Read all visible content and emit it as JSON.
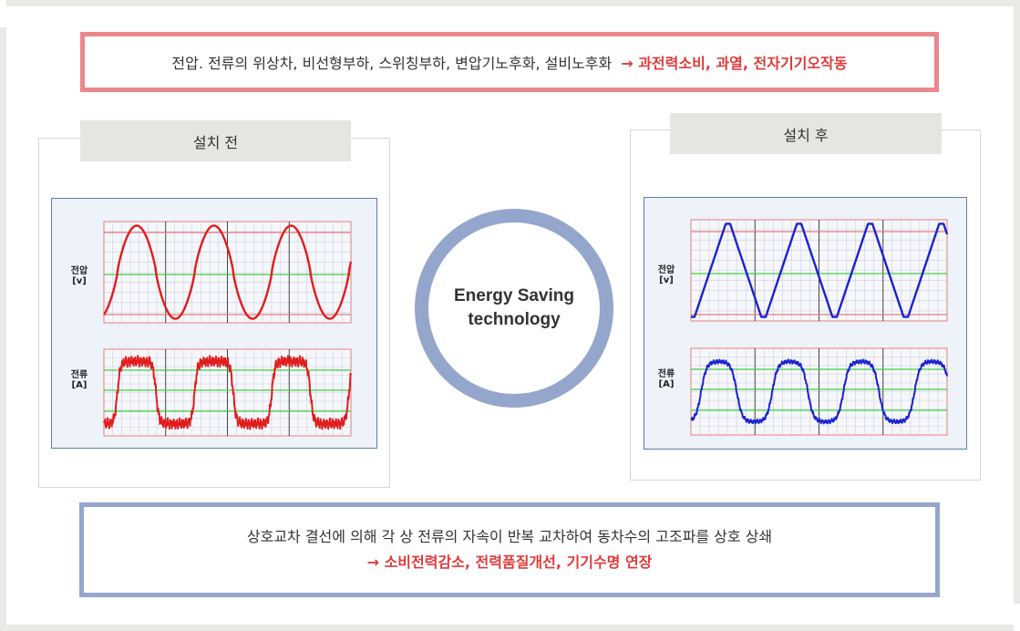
{
  "header": {
    "causes": "전압. 전류의 위상차, 비선형부하, 스위칭부하, 변압기노후화, 설비노후화",
    "effects": "→ 과전력소비, 과열, 전자기기오작동"
  },
  "before": {
    "title": "설치 전",
    "voltage_label_1": "전압",
    "voltage_label_2": "[v]",
    "current_label_1": "전류",
    "current_label_2": "[A]"
  },
  "after": {
    "title": "설치 후",
    "voltage_label_1": "전압",
    "voltage_label_2": "[v]",
    "current_label_1": "전류",
    "current_label_2": "[A]"
  },
  "center": {
    "line1": "Energy Saving",
    "line2": "technology"
  },
  "footer": {
    "description": "상호교차 결선에 의해 각 상 전류의 자속이 반복 교차하여 동차수의 고조파를 상호 상쇄",
    "result": "→ 소비전력감소, 전력품질개선, 기기수명 연장"
  },
  "colors": {
    "top_border": "#e9878c",
    "bottom_border": "#95a6cc",
    "before_wave": "#e01c1c",
    "after_wave": "#1a22d0",
    "grid_line": "#e87c7c",
    "reference_line": "#3fcf3f",
    "emphasis_text": "#e03a3a"
  },
  "chart_data": [
    {
      "type": "line",
      "title": "설치 전",
      "series": [
        {
          "name": "전압",
          "shape": "sine",
          "cycles": 3.2,
          "color": "#e01c1c"
        },
        {
          "name": "전류",
          "shape": "distorted-square",
          "cycles": 3.2,
          "color": "#e01c1c"
        }
      ]
    },
    {
      "type": "line",
      "title": "설치 후",
      "series": [
        {
          "name": "전압",
          "shape": "triangle",
          "cycles": 3.6,
          "color": "#1a22d0"
        },
        {
          "name": "전류",
          "shape": "smooth",
          "cycles": 3.6,
          "color": "#1a22d0"
        }
      ]
    }
  ]
}
